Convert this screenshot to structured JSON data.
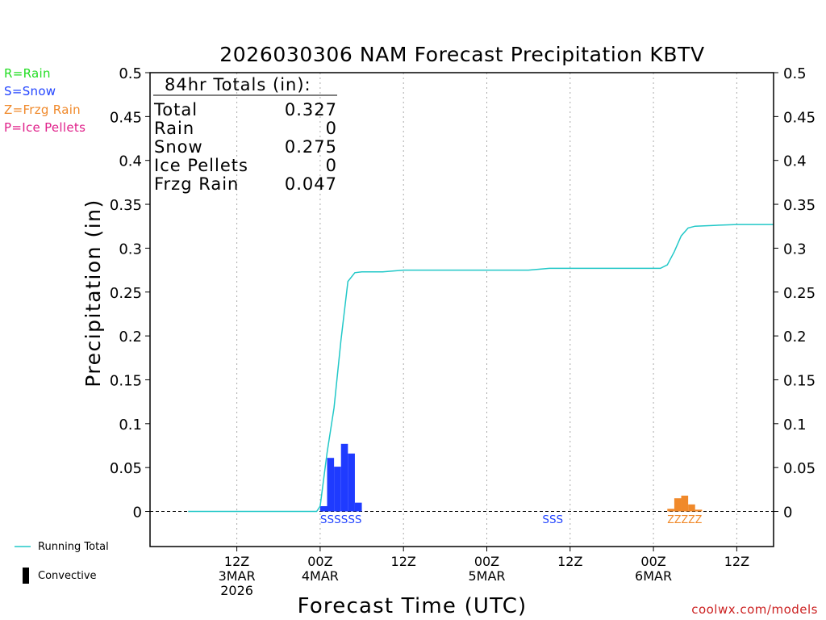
{
  "legend_codes": [
    {
      "text": "R=Rain",
      "color": "#22dd22"
    },
    {
      "text": "S=Snow",
      "color": "#2244ff"
    },
    {
      "text": "Z=Frzg Rain",
      "color": "#f0892a"
    },
    {
      "text": "P=Ice Pellets",
      "color": "#e0208a"
    }
  ],
  "footer": {
    "running_total_label": "Running Total",
    "convective_label": "Convective",
    "watermark": "coolwx.com/models"
  },
  "totals_box": {
    "heading": "84hr Totals (in):",
    "rows": [
      {
        "label": "Total",
        "value": "0.327"
      },
      {
        "label": "Rain",
        "value": "0"
      },
      {
        "label": "Snow",
        "value": "0.275"
      },
      {
        "label": "Ice Pellets",
        "value": "0"
      },
      {
        "label": "Frzg Rain",
        "value": "0.047"
      }
    ]
  },
  "colors": {
    "running_total": "#22c8c8",
    "snow": "#1f3bff",
    "freezing_rain": "#f0892a",
    "grid": "#aaaaaa"
  },
  "chart_data": {
    "type": "bar",
    "title": "2026030306 NAM Forecast Precipitation KBTV",
    "xlabel": "Forecast Time (UTC)",
    "ylabel": "Precipitation (in)",
    "ylim": [
      -0.04,
      0.5
    ],
    "x_unit": "forecast hour",
    "xlim": [
      -6.5,
      83.3
    ],
    "y_ticks": [
      "0",
      "0.05",
      "0.1",
      "0.15",
      "0.2",
      "0.25",
      "0.3",
      "0.35",
      "0.4",
      "0.45",
      "0.5"
    ],
    "y_tick_values": [
      0,
      0.05,
      0.1,
      0.15,
      0.2,
      0.25,
      0.3,
      0.35,
      0.4,
      0.45,
      0.5
    ],
    "x_ticks": [
      {
        "hour": 6,
        "lines": [
          "12Z",
          "3MAR",
          "2026"
        ]
      },
      {
        "hour": 18,
        "lines": [
          "00Z",
          "4MAR"
        ]
      },
      {
        "hour": 30,
        "lines": [
          "12Z"
        ]
      },
      {
        "hour": 42,
        "lines": [
          "00Z",
          "5MAR"
        ]
      },
      {
        "hour": 54,
        "lines": [
          "12Z"
        ]
      },
      {
        "hour": 66,
        "lines": [
          "00Z",
          "6MAR"
        ]
      },
      {
        "hour": 78,
        "lines": [
          "12Z"
        ]
      }
    ],
    "grid": "vertical dotted",
    "series": [
      {
        "name": "Snow",
        "color": "#1f3bff",
        "bars": [
          {
            "hour": 18,
            "value": 0.006
          },
          {
            "hour": 19,
            "value": 0.061
          },
          {
            "hour": 20,
            "value": 0.051
          },
          {
            "hour": 21,
            "value": 0.077
          },
          {
            "hour": 22,
            "value": 0.066
          },
          {
            "hour": 23,
            "value": 0.01
          }
        ]
      },
      {
        "name": "Frzg Rain",
        "color": "#f0892a",
        "bars": [
          {
            "hour": 68,
            "value": 0.003
          },
          {
            "hour": 69,
            "value": 0.015
          },
          {
            "hour": 70,
            "value": 0.018
          },
          {
            "hour": 71,
            "value": 0.008
          },
          {
            "hour": 72,
            "value": 0.002
          }
        ]
      },
      {
        "name": "Running Total",
        "type": "line",
        "color": "#22c8c8",
        "points": [
          [
            -1,
            0.0
          ],
          [
            17.5,
            0.0
          ],
          [
            18,
            0.006
          ],
          [
            19,
            0.067
          ],
          [
            20,
            0.118
          ],
          [
            21,
            0.195
          ],
          [
            22,
            0.262
          ],
          [
            23,
            0.272
          ],
          [
            24,
            0.273
          ],
          [
            27,
            0.273
          ],
          [
            30,
            0.275
          ],
          [
            36,
            0.275
          ],
          [
            42,
            0.275
          ],
          [
            48,
            0.275
          ],
          [
            51,
            0.277
          ],
          [
            54,
            0.277
          ],
          [
            60,
            0.277
          ],
          [
            66,
            0.277
          ],
          [
            67,
            0.277
          ],
          [
            68,
            0.281
          ],
          [
            69,
            0.296
          ],
          [
            70,
            0.314
          ],
          [
            71,
            0.323
          ],
          [
            72,
            0.325
          ],
          [
            75,
            0.326
          ],
          [
            78,
            0.327
          ],
          [
            83.3,
            0.327
          ]
        ]
      }
    ],
    "ptype_markers": [
      {
        "text": "SSSSSS",
        "start_hour": 18,
        "color": "#2244ff"
      },
      {
        "text": "SSS",
        "start_hour": 50,
        "color": "#2244ff"
      },
      {
        "text": "ZZZZZ",
        "start_hour": 68,
        "color": "#f0892a"
      }
    ]
  }
}
